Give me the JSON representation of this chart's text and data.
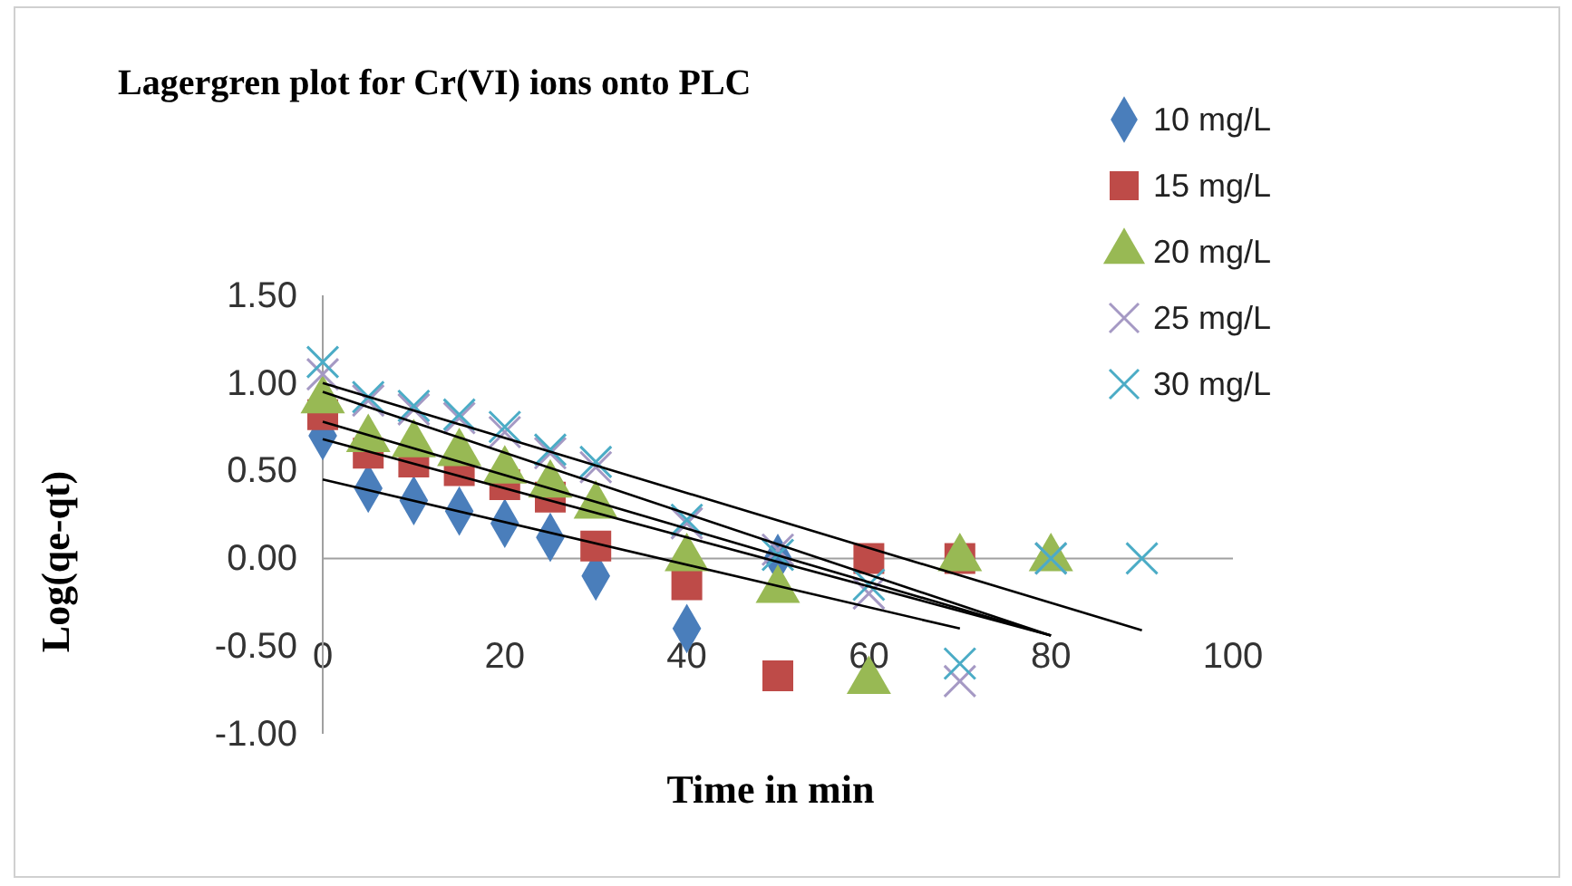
{
  "chart_data": {
    "type": "scatter",
    "title": "Lagergren plot for Cr(VI) ions onto PLC",
    "xlabel": "Time in min",
    "ylabel": "Log(qe-qt)",
    "xlim": [
      0,
      100
    ],
    "xticks": [
      0,
      20,
      40,
      60,
      80,
      100
    ],
    "ylim": [
      -1,
      1.5
    ],
    "yticks": [
      {
        "value": -1,
        "label": "-1.00"
      },
      {
        "value": -0.5,
        "label": "-0.50"
      },
      {
        "value": 0,
        "label": "0.00"
      },
      {
        "value": 0.5,
        "label": "0.50"
      },
      {
        "value": 1,
        "label": "1.00"
      },
      {
        "value": 1.5,
        "label": "1.50"
      }
    ],
    "grid": false,
    "legend": "right",
    "series": [
      {
        "name": "10 mg/L",
        "color": "#4a7ebb",
        "marker": "diamond",
        "x": [
          0,
          5,
          10,
          15,
          20,
          25,
          30,
          40,
          50
        ],
        "values": [
          0.7,
          0.4,
          0.33,
          0.27,
          0.2,
          0.12,
          -0.1,
          -0.4,
          0.0
        ]
      },
      {
        "name": "15 mg/L",
        "color": "#be4b48",
        "marker": "square",
        "x": [
          0,
          5,
          10,
          15,
          20,
          25,
          30,
          40,
          50,
          60,
          70
        ],
        "values": [
          0.82,
          0.6,
          0.55,
          0.5,
          0.42,
          0.35,
          0.07,
          -0.15,
          -0.67,
          0.0,
          0.0
        ]
      },
      {
        "name": "20 mg/L",
        "color": "#98b954",
        "marker": "triangle",
        "x": [
          0,
          5,
          10,
          15,
          20,
          25,
          30,
          40,
          50,
          60,
          70,
          80
        ],
        "values": [
          0.9,
          0.68,
          0.65,
          0.6,
          0.5,
          0.42,
          0.3,
          0.0,
          -0.18,
          -0.7,
          0.0,
          0.0
        ]
      },
      {
        "name": "25 mg/L",
        "color": "#a599c4",
        "marker": "cross",
        "x": [
          0,
          5,
          10,
          15,
          20,
          25,
          30,
          40,
          50,
          60,
          70,
          80
        ],
        "values": [
          1.05,
          0.9,
          0.85,
          0.8,
          0.72,
          0.6,
          0.52,
          0.2,
          0.05,
          -0.2,
          -0.7,
          0.0
        ]
      },
      {
        "name": "30 mg/L",
        "color": "#4bacc6",
        "marker": "cross",
        "x": [
          0,
          5,
          10,
          15,
          20,
          25,
          30,
          40,
          50,
          60,
          70,
          80,
          90
        ],
        "values": [
          1.12,
          0.92,
          0.87,
          0.82,
          0.75,
          0.62,
          0.55,
          0.22,
          0.02,
          -0.15,
          -0.6,
          0.0,
          0.0
        ]
      },
      {
        "type": "line",
        "color": "#000000",
        "marker": "none",
        "x": [
          0,
          70
        ],
        "values": [
          0.45,
          -0.4
        ]
      },
      {
        "type": "line",
        "color": "#000000",
        "marker": "none",
        "x": [
          0,
          80
        ],
        "values": [
          0.68,
          -0.44
        ]
      },
      {
        "type": "line",
        "color": "#000000",
        "marker": "none",
        "x": [
          0,
          80
        ],
        "values": [
          0.78,
          -0.44
        ]
      },
      {
        "type": "line",
        "color": "#000000",
        "marker": "none",
        "x": [
          0,
          80
        ],
        "values": [
          0.95,
          -0.44
        ]
      },
      {
        "type": "line",
        "color": "#000000",
        "marker": "none",
        "x": [
          0,
          90
        ],
        "values": [
          1.0,
          -0.41
        ]
      }
    ]
  }
}
